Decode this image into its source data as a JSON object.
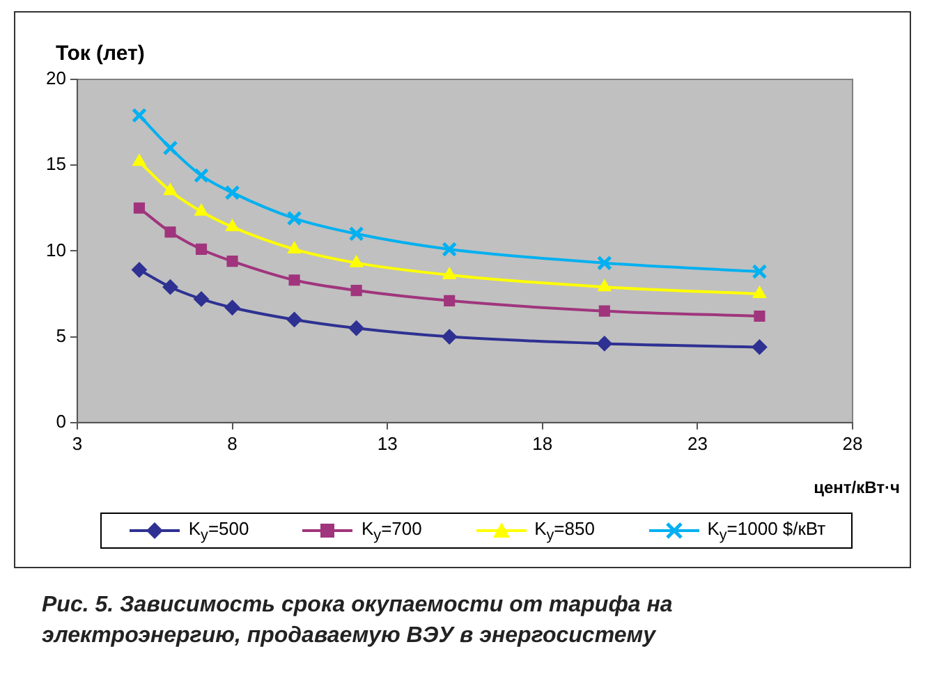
{
  "chart_data": {
    "type": "line",
    "ylabel": "Ток (лет)",
    "xlabel": "цент/кВт·ч",
    "x": [
      5,
      6,
      7,
      8,
      10,
      12,
      15,
      20,
      25
    ],
    "xlim": [
      3,
      28
    ],
    "xticks": [
      3,
      8,
      13,
      18,
      23,
      28
    ],
    "ylim": [
      0,
      20
    ],
    "yticks": [
      0,
      5,
      10,
      15,
      20
    ],
    "legend": "bottom",
    "line_style": "solid",
    "series": [
      {
        "name": "K$_{y}$=500",
        "color": "#2e3192",
        "marker": "diamond",
        "values": [
          8.9,
          7.9,
          7.2,
          6.7,
          6.0,
          5.5,
          5.0,
          4.6,
          4.4
        ]
      },
      {
        "name": "K$_{y}$=700",
        "color": "#a0357d",
        "marker": "square",
        "values": [
          12.5,
          11.1,
          10.1,
          9.4,
          8.3,
          7.7,
          7.1,
          6.5,
          6.2
        ]
      },
      {
        "name": "K$_{y}$=850",
        "color": "#ffff00",
        "marker": "triangle",
        "values": [
          15.2,
          13.5,
          12.3,
          11.4,
          10.1,
          9.3,
          8.6,
          7.9,
          7.5
        ]
      },
      {
        "name": "K$_{y}$=1000 $/кВт",
        "color": "#00b0f0",
        "marker": "cross",
        "values": [
          17.9,
          16.0,
          14.4,
          13.4,
          11.9,
          11.0,
          10.1,
          9.3,
          8.8
        ]
      }
    ],
    "annotations": [
      "Рис. 5. Зависимость срока окупаемости от тарифа на электроэнергию, продаваемую ВЭУ в энергосистему"
    ]
  }
}
